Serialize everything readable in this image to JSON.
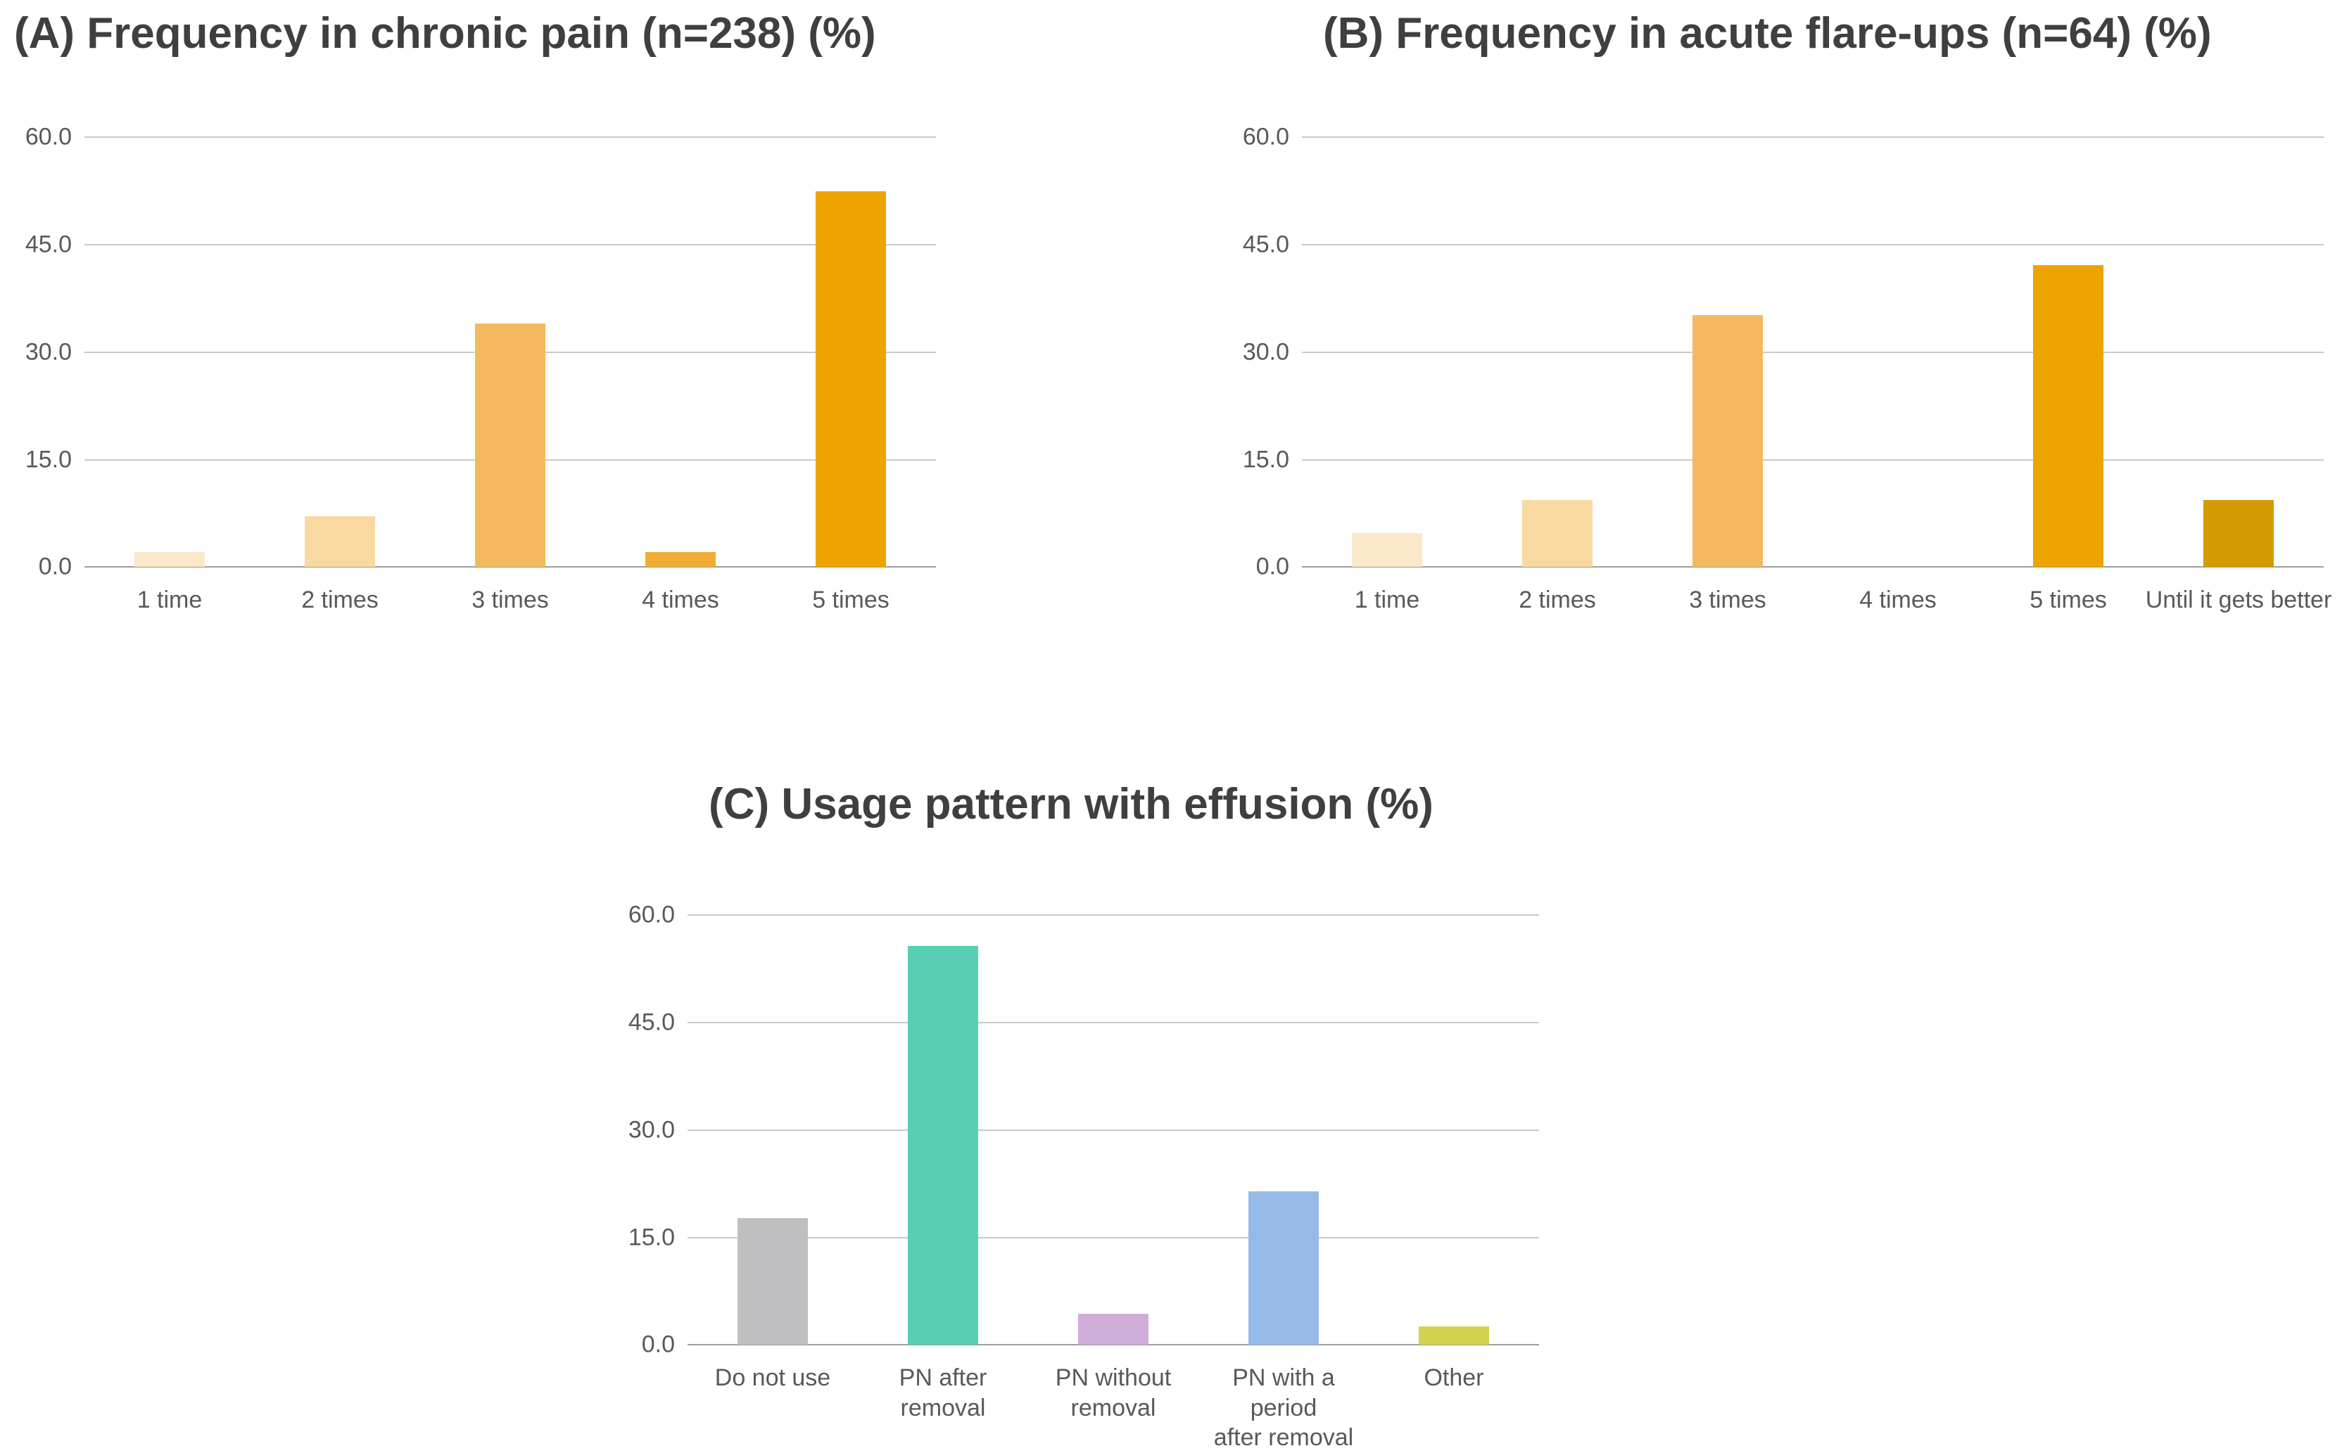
{
  "figure": {
    "background": "#FFFFFF",
    "title_color": "#3F3F3F",
    "tick_color": "#595959",
    "gridline_color": "#C9C9C9",
    "axis_line_color": "#9E9E9E"
  },
  "chart_data": [
    {
      "type": "bar",
      "title": "(A) Frequency in chronic pain (n=238) (%)",
      "categories": [
        "1 time",
        "2 times",
        "3 times",
        "4 times",
        "5 times"
      ],
      "values": [
        2.1,
        7.1,
        34.0,
        2.1,
        52.5
      ],
      "bar_colors": [
        "#FBE8CB",
        "#F9D9A2",
        "#F4B95E",
        "#F0AC33",
        "#EEA400"
      ],
      "xlabel": "",
      "ylabel": "",
      "ylim": [
        0,
        60
      ],
      "ytick_values": [
        0,
        15,
        30,
        45,
        60
      ],
      "ytick_labels": [
        "0.0",
        "15.0",
        "30.0",
        "45.0",
        "60.0"
      ],
      "grid": true,
      "legend": false
    },
    {
      "type": "bar",
      "title": "(B) Frequency in acute flare-ups (n=64) (%)",
      "categories": [
        "1 time",
        "2 times",
        "3 times",
        "4 times",
        "5 times",
        "Until it gets better"
      ],
      "values": [
        4.7,
        9.4,
        35.2,
        0.0,
        42.2,
        9.4
      ],
      "bar_colors": [
        "#FBE8CB",
        "#F9D9A2",
        "#F4B95E",
        "#F0AC33",
        "#EEA400",
        "#D49B02"
      ],
      "xlabel": "",
      "ylabel": "",
      "ylim": [
        0,
        60
      ],
      "ytick_values": [
        0,
        15,
        30,
        45,
        60
      ],
      "ytick_labels": [
        "0.0",
        "15.0",
        "30.0",
        "45.0",
        "60.0"
      ],
      "grid": true,
      "legend": false
    },
    {
      "type": "bar",
      "title": "(C) Usage pattern with effusion (%)",
      "categories": [
        "Do not use",
        "PN after removal",
        "PN without\nremoval",
        "PN with a period\nafter removal",
        "Other"
      ],
      "values": [
        17.7,
        55.7,
        4.4,
        21.4,
        2.6
      ],
      "bar_colors": [
        "#BFBEC1",
        "#58CFB2",
        "#D0ACD8",
        "#97B9E7",
        "#D5D252"
      ],
      "xlabel": "",
      "ylabel": "",
      "ylim": [
        0,
        60
      ],
      "ytick_values": [
        0,
        15,
        30,
        45,
        60
      ],
      "ytick_labels": [
        "0.0",
        "15.0",
        "30.0",
        "45.0",
        "60.0"
      ],
      "grid": true,
      "legend": false
    }
  ]
}
